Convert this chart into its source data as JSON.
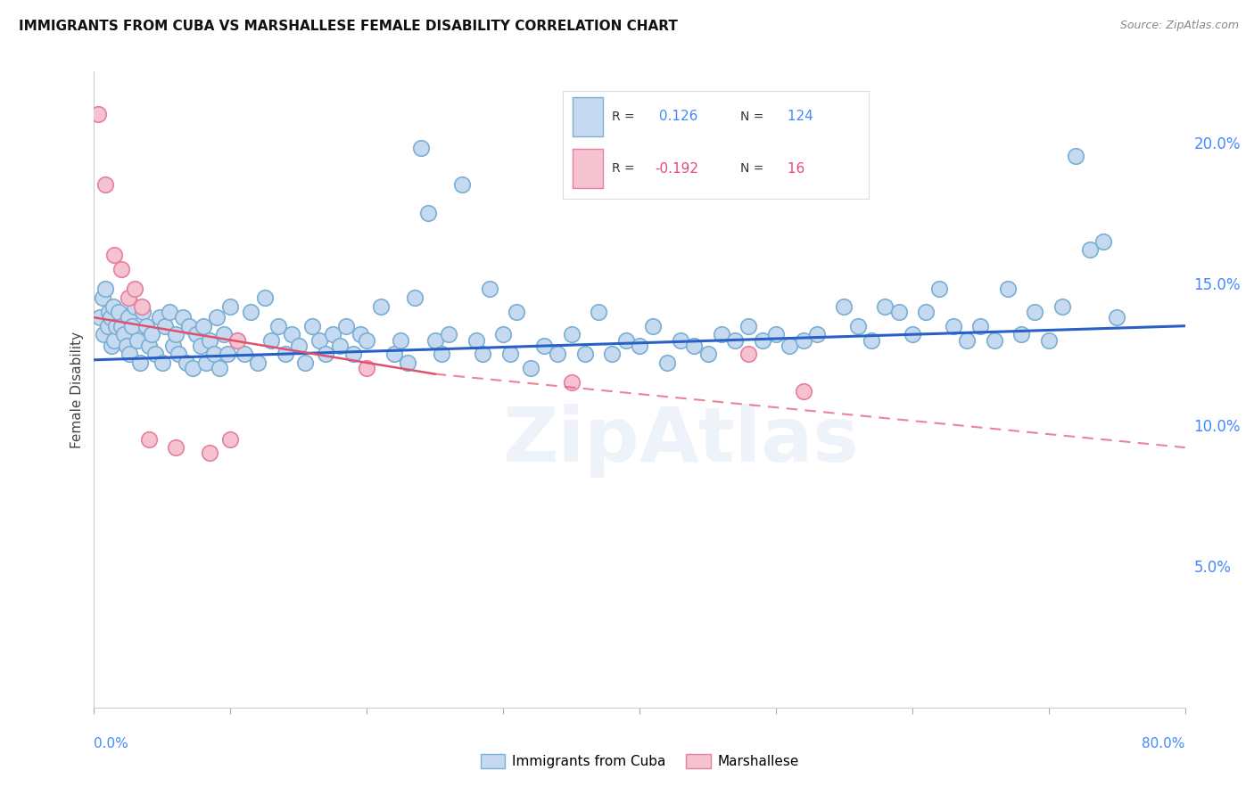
{
  "title": "IMMIGRANTS FROM CUBA VS MARSHALLESE FEMALE DISABILITY CORRELATION CHART",
  "source": "Source: ZipAtlas.com",
  "ylabel": "Female Disability",
  "r_blue": 0.126,
  "n_blue": 124,
  "r_pink": -0.192,
  "n_pink": 16,
  "right_yticks": [
    5.0,
    10.0,
    15.0,
    20.0
  ],
  "blue_color": "#c5d9f0",
  "blue_edge": "#7aafd4",
  "pink_color": "#f5c2d0",
  "pink_edge": "#e87fa0",
  "blue_line_color": "#2860c8",
  "pink_line_color": "#e05070",
  "blue_scatter": [
    [
      0.4,
      13.8
    ],
    [
      0.6,
      14.5
    ],
    [
      0.7,
      13.2
    ],
    [
      0.8,
      14.8
    ],
    [
      1.0,
      13.5
    ],
    [
      1.1,
      14.0
    ],
    [
      1.2,
      13.8
    ],
    [
      1.3,
      12.8
    ],
    [
      1.4,
      14.2
    ],
    [
      1.5,
      13.0
    ],
    [
      1.6,
      13.5
    ],
    [
      1.8,
      14.0
    ],
    [
      2.0,
      13.5
    ],
    [
      2.2,
      13.2
    ],
    [
      2.4,
      12.8
    ],
    [
      2.5,
      13.8
    ],
    [
      2.6,
      12.5
    ],
    [
      2.8,
      13.5
    ],
    [
      3.0,
      14.2
    ],
    [
      3.2,
      13.0
    ],
    [
      3.4,
      12.2
    ],
    [
      3.6,
      14.0
    ],
    [
      3.8,
      13.5
    ],
    [
      4.0,
      12.8
    ],
    [
      4.2,
      13.2
    ],
    [
      4.5,
      12.5
    ],
    [
      4.8,
      13.8
    ],
    [
      5.0,
      12.2
    ],
    [
      5.2,
      13.5
    ],
    [
      5.5,
      14.0
    ],
    [
      5.8,
      12.8
    ],
    [
      6.0,
      13.2
    ],
    [
      6.2,
      12.5
    ],
    [
      6.5,
      13.8
    ],
    [
      6.8,
      12.2
    ],
    [
      7.0,
      13.5
    ],
    [
      7.2,
      12.0
    ],
    [
      7.5,
      13.2
    ],
    [
      7.8,
      12.8
    ],
    [
      8.0,
      13.5
    ],
    [
      8.2,
      12.2
    ],
    [
      8.5,
      13.0
    ],
    [
      8.8,
      12.5
    ],
    [
      9.0,
      13.8
    ],
    [
      9.2,
      12.0
    ],
    [
      9.5,
      13.2
    ],
    [
      9.8,
      12.5
    ],
    [
      10.0,
      14.2
    ],
    [
      10.5,
      13.0
    ],
    [
      11.0,
      12.5
    ],
    [
      11.5,
      14.0
    ],
    [
      12.0,
      12.2
    ],
    [
      12.5,
      14.5
    ],
    [
      13.0,
      13.0
    ],
    [
      13.5,
      13.5
    ],
    [
      14.0,
      12.5
    ],
    [
      14.5,
      13.2
    ],
    [
      15.0,
      12.8
    ],
    [
      15.5,
      12.2
    ],
    [
      16.0,
      13.5
    ],
    [
      16.5,
      13.0
    ],
    [
      17.0,
      12.5
    ],
    [
      17.5,
      13.2
    ],
    [
      18.0,
      12.8
    ],
    [
      18.5,
      13.5
    ],
    [
      19.0,
      12.5
    ],
    [
      19.5,
      13.2
    ],
    [
      20.0,
      13.0
    ],
    [
      21.0,
      14.2
    ],
    [
      22.0,
      12.5
    ],
    [
      22.5,
      13.0
    ],
    [
      23.0,
      12.2
    ],
    [
      23.5,
      14.5
    ],
    [
      24.0,
      19.8
    ],
    [
      24.5,
      17.5
    ],
    [
      25.0,
      13.0
    ],
    [
      25.5,
      12.5
    ],
    [
      26.0,
      13.2
    ],
    [
      27.0,
      18.5
    ],
    [
      28.0,
      13.0
    ],
    [
      28.5,
      12.5
    ],
    [
      29.0,
      14.8
    ],
    [
      30.0,
      13.2
    ],
    [
      30.5,
      12.5
    ],
    [
      31.0,
      14.0
    ],
    [
      32.0,
      12.0
    ],
    [
      33.0,
      12.8
    ],
    [
      34.0,
      12.5
    ],
    [
      35.0,
      13.2
    ],
    [
      36.0,
      12.5
    ],
    [
      37.0,
      14.0
    ],
    [
      38.0,
      12.5
    ],
    [
      39.0,
      13.0
    ],
    [
      40.0,
      12.8
    ],
    [
      41.0,
      13.5
    ],
    [
      42.0,
      12.2
    ],
    [
      43.0,
      13.0
    ],
    [
      44.0,
      12.8
    ],
    [
      45.0,
      12.5
    ],
    [
      46.0,
      13.2
    ],
    [
      47.0,
      13.0
    ],
    [
      48.0,
      13.5
    ],
    [
      49.0,
      13.0
    ],
    [
      50.0,
      13.2
    ],
    [
      51.0,
      12.8
    ],
    [
      52.0,
      13.0
    ],
    [
      53.0,
      13.2
    ],
    [
      55.0,
      14.2
    ],
    [
      56.0,
      13.5
    ],
    [
      57.0,
      13.0
    ],
    [
      58.0,
      14.2
    ],
    [
      59.0,
      14.0
    ],
    [
      60.0,
      13.2
    ],
    [
      61.0,
      14.0
    ],
    [
      62.0,
      14.8
    ],
    [
      63.0,
      13.5
    ],
    [
      64.0,
      13.0
    ],
    [
      65.0,
      13.5
    ],
    [
      66.0,
      13.0
    ],
    [
      67.0,
      14.8
    ],
    [
      68.0,
      13.2
    ],
    [
      69.0,
      14.0
    ],
    [
      70.0,
      13.0
    ],
    [
      71.0,
      14.2
    ],
    [
      72.0,
      19.5
    ],
    [
      73.0,
      16.2
    ],
    [
      74.0,
      16.5
    ],
    [
      75.0,
      13.8
    ]
  ],
  "pink_scatter": [
    [
      0.3,
      21.0
    ],
    [
      0.8,
      18.5
    ],
    [
      1.5,
      16.0
    ],
    [
      2.0,
      15.5
    ],
    [
      2.5,
      14.5
    ],
    [
      3.0,
      14.8
    ],
    [
      3.5,
      14.2
    ],
    [
      4.0,
      9.5
    ],
    [
      6.0,
      9.2
    ],
    [
      8.5,
      9.0
    ],
    [
      10.0,
      9.5
    ],
    [
      10.5,
      13.0
    ],
    [
      20.0,
      12.0
    ],
    [
      35.0,
      11.5
    ],
    [
      48.0,
      12.5
    ],
    [
      52.0,
      11.2
    ]
  ],
  "xmin": 0,
  "xmax": 80,
  "ymin": 0,
  "ymax": 22.5,
  "blue_trend": [
    12.3,
    13.5
  ],
  "pink_trend_solid": [
    0,
    25,
    13.8,
    11.8
  ],
  "pink_trend_dash": [
    25,
    80,
    11.8,
    9.2
  ]
}
